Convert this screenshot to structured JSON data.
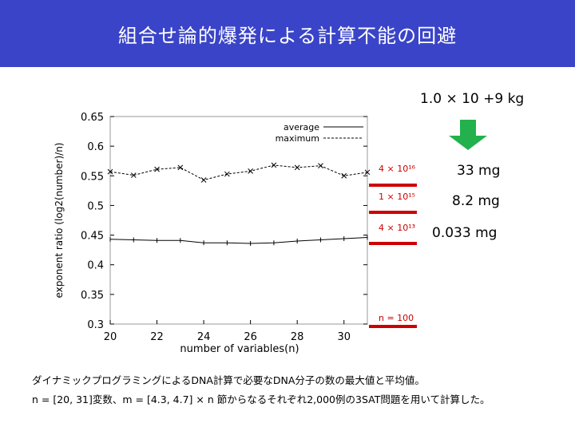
{
  "slide": {
    "title": "組合せ論的爆発による計算不能の回避",
    "mass_header": "1.0 × 10 +9 kg",
    "annotations": [
      {
        "count": "4 × 10¹⁶",
        "mass": "33 mg"
      },
      {
        "count": "1 × 10¹⁵",
        "mass": "8.2 mg"
      },
      {
        "count": "4 × 10¹³",
        "mass": "0.033 mg"
      },
      {
        "count": "n = 100",
        "mass": ""
      }
    ],
    "caption_line1": "ダイナミックプログラミングによるDNA計算で必要なDNA分子の数の最大値と平均値。",
    "caption_line2": "n = [20, 31]変数、m = [4.3, 4.7] × n 節からなるそれぞれ2,000例の3SAT問題を用いて計算した。",
    "colors": {
      "title_bg": "#3a44c8",
      "accent_red": "#cc0000",
      "arrow_green": "#22b14c"
    }
  },
  "chart_data": {
    "type": "line",
    "xlabel": "number of variables(n)",
    "ylabel": "exponent ratio (log2(number)/n)",
    "xlim": [
      20,
      31
    ],
    "ylim": [
      0.3,
      0.65
    ],
    "xticks": [
      "20",
      "22",
      "24",
      "26",
      "28",
      "30"
    ],
    "yticks": [
      "0.3",
      "0.35",
      "0.4",
      "0.45",
      "0.5",
      "0.55",
      "0.6",
      "0.65"
    ],
    "x": [
      20,
      21,
      22,
      23,
      24,
      25,
      26,
      27,
      28,
      29,
      30,
      31
    ],
    "series": [
      {
        "name": "average",
        "values": [
          0.443,
          0.442,
          0.441,
          0.441,
          0.437,
          0.437,
          0.436,
          0.437,
          0.44,
          0.442,
          0.444,
          0.446
        ]
      },
      {
        "name": "maximum",
        "values": [
          0.557,
          0.551,
          0.561,
          0.564,
          0.543,
          0.553,
          0.558,
          0.568,
          0.564,
          0.567,
          0.55,
          0.556
        ]
      }
    ],
    "legend": "top-right"
  }
}
